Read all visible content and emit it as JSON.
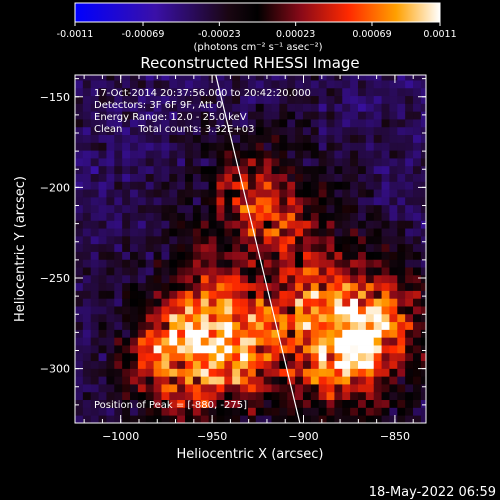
{
  "chart_data": {
    "type": "heatmap",
    "title": "Reconstructed RHESSI Image",
    "xlabel": "Heliocentric X (arcsec)",
    "ylabel": "Heliocentric Y (arcsec)",
    "xlim": [
      -1025,
      -833
    ],
    "ylim": [
      -330,
      -138
    ],
    "x_ticks": [
      -1000,
      -950,
      -900,
      -850
    ],
    "y_ticks": [
      -300,
      -250,
      -200,
      -150
    ],
    "colorbar": {
      "ticks": [
        "-0.0011",
        "-0.00069",
        "-0.00023",
        "0.00023",
        "0.00069",
        "0.0011"
      ],
      "tick_values": [
        -0.0011,
        -0.00069,
        -0.00023,
        0.00023,
        0.00069,
        0.0011
      ],
      "range": [
        -0.0011,
        0.0011
      ],
      "unit_text": "(photons cm⁻² s⁻¹ asec⁻²)"
    },
    "annotations": {
      "time_range": "17-Oct-2014 20:37:56.000 to 20:42:20.000",
      "detectors": "Detectors: 3F 6F 9F, Att 0",
      "energy_range": "Energy Range: 12.0 - 25.0 keV",
      "clean_counts": "Clean     Total counts: 3.32E+03",
      "peak_position": "Position of Peak = [-880, -275]"
    },
    "peak": [
      -880,
      -275
    ],
    "sources": [
      {
        "x": -955,
        "y": -288,
        "strength": 0.95
      },
      {
        "x": -875,
        "y": -280,
        "strength": 1.0
      },
      {
        "x": -922,
        "y": -212,
        "strength": 0.5
      }
    ],
    "limb_line": [
      [
        -948,
        -138
      ],
      [
        -902,
        -330
      ]
    ],
    "grid": false
  },
  "footer": {
    "date": "18-May-2022 06:59"
  },
  "colors": {
    "background": "#000000",
    "axes": "#ffffff",
    "limb": "#ffffff"
  }
}
